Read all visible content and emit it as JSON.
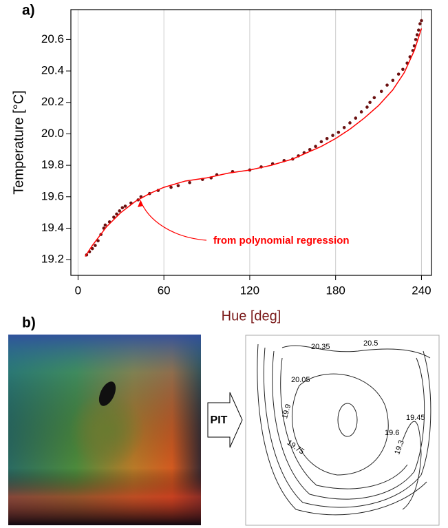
{
  "chart_data": {
    "type": "scatter",
    "panel_label": "a)",
    "x_label": "Hue [deg]",
    "y_label": "Temperature [°C]",
    "annotation": "from polynomial regression",
    "xlim": [
      -5,
      247
    ],
    "ylim": [
      19.1,
      20.79
    ],
    "xticks": [
      0,
      60,
      120,
      180,
      240
    ],
    "yticks": [
      19.2,
      19.4,
      19.6,
      19.8,
      {
        "value": 20,
        "label": "20.0"
      },
      20.2,
      20.4,
      20.6
    ],
    "grid": "x",
    "series": [
      {
        "type": "scatter",
        "color": "#6b1010",
        "x": [
          6,
          8,
          10,
          12,
          14,
          16,
          18,
          19,
          22,
          25,
          27,
          29,
          31,
          33,
          37,
          42,
          44,
          50,
          56,
          65,
          70,
          78,
          87,
          93,
          97,
          108,
          120,
          128,
          136,
          144,
          150,
          154,
          158,
          162,
          166,
          170,
          174,
          178,
          182,
          186,
          190,
          194,
          198,
          202,
          204,
          207,
          212,
          216,
          220,
          224,
          227,
          230,
          232,
          234,
          235,
          236,
          237,
          238,
          239,
          240
        ],
        "values": [
          19.23,
          19.25,
          19.27,
          19.29,
          19.32,
          19.36,
          19.4,
          19.42,
          19.44,
          19.47,
          19.49,
          19.51,
          19.53,
          19.54,
          19.56,
          19.58,
          19.6,
          19.62,
          19.64,
          19.66,
          19.67,
          19.69,
          19.71,
          19.72,
          19.74,
          19.76,
          19.77,
          19.79,
          19.81,
          19.83,
          19.84,
          19.86,
          19.88,
          19.9,
          19.92,
          19.95,
          19.97,
          19.99,
          20.01,
          20.04,
          20.07,
          20.1,
          20.14,
          20.17,
          20.2,
          20.23,
          20.27,
          20.31,
          20.34,
          20.38,
          20.41,
          20.45,
          20.49,
          20.53,
          20.56,
          20.6,
          20.63,
          20.66,
          20.7,
          20.72
        ]
      },
      {
        "type": "line",
        "color": "#ff0000",
        "x": [
          5,
          10,
          20,
          30,
          40,
          50,
          60,
          75,
          90,
          105,
          120,
          135,
          150,
          160,
          170,
          180,
          190,
          200,
          210,
          220,
          228,
          235,
          240
        ],
        "values": [
          19.22,
          19.29,
          19.41,
          19.5,
          19.57,
          19.62,
          19.66,
          19.7,
          19.72,
          19.75,
          19.77,
          19.8,
          19.84,
          19.88,
          19.92,
          19.97,
          20.03,
          20.1,
          20.18,
          20.28,
          20.39,
          20.53,
          20.67
        ]
      }
    ]
  },
  "panel_b": {
    "label": "b)",
    "arrow_label": "PIT",
    "contour_labels": [
      "20.35",
      "20.5",
      "20.05",
      "19.9",
      "19.45",
      "19.6",
      "19.75",
      "19.3"
    ]
  }
}
